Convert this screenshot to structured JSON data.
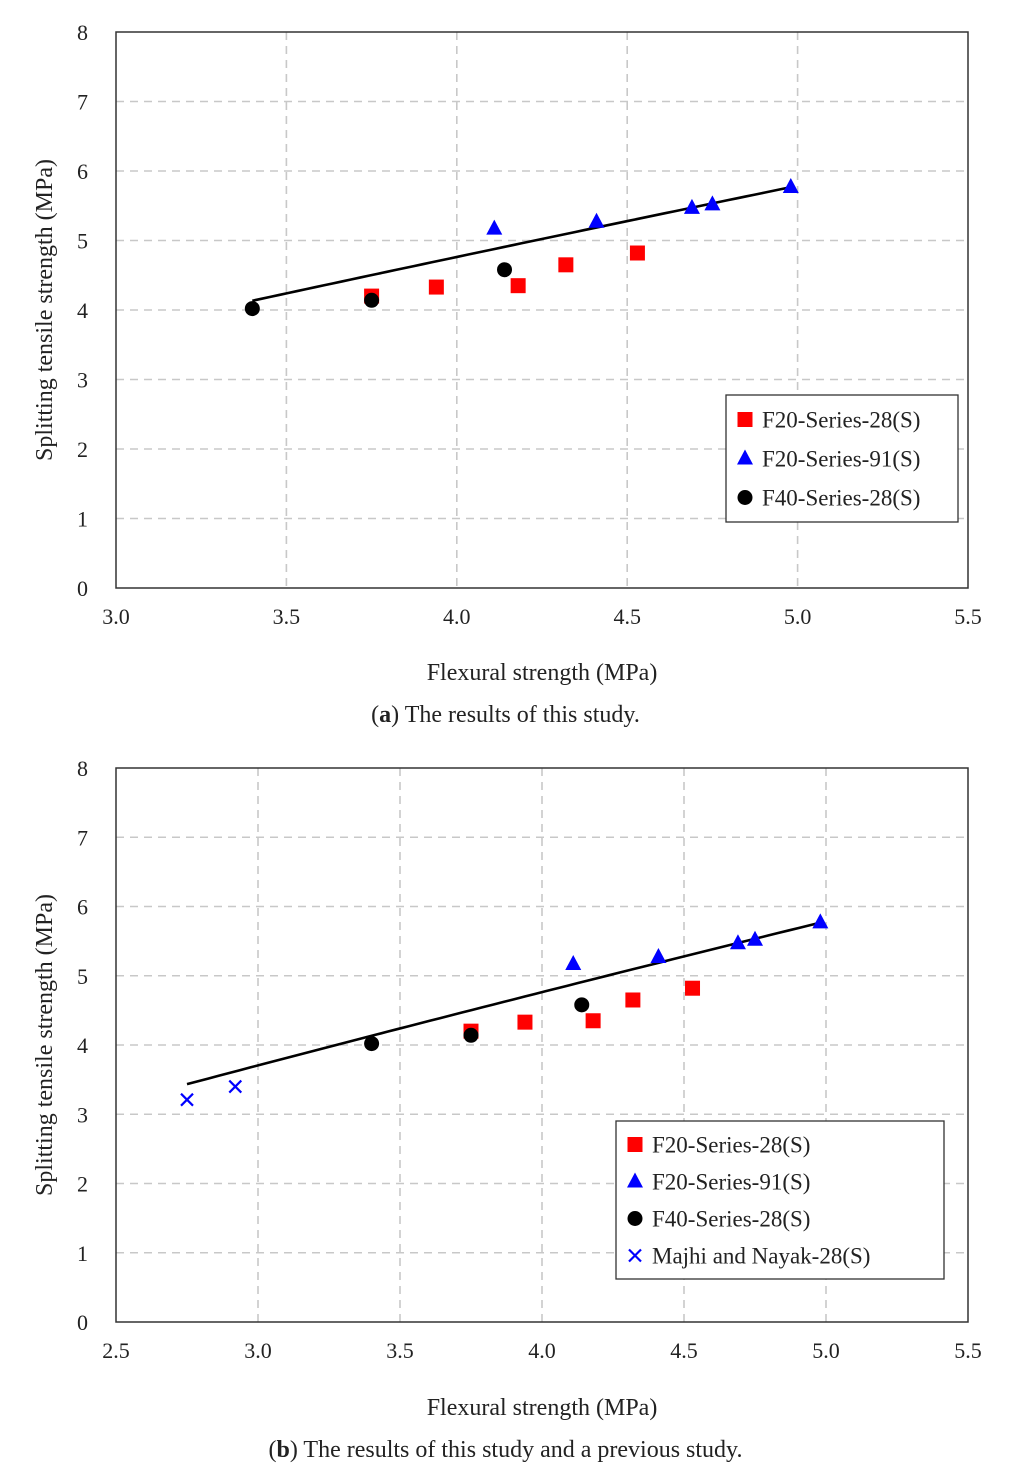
{
  "chart_data": [
    {
      "type": "scatter",
      "panel": "a",
      "caption_letter": "a",
      "caption_text": " The results of this study.",
      "xlabel": "Flexural strength (MPa)",
      "ylabel": "Splitting tensile strength (MPa)",
      "xlim": [
        3.0,
        5.5
      ],
      "ylim": [
        0,
        8
      ],
      "xticks": [
        "3.0",
        "3.5",
        "4.0",
        "4.5",
        "5.0",
        "5.5"
      ],
      "yticks": [
        "0",
        "1",
        "2",
        "3",
        "4",
        "5",
        "6",
        "7",
        "8"
      ],
      "grid": true,
      "legend_position": "right",
      "series": [
        {
          "name": "F20-Series-28(S)",
          "marker": "square",
          "color": "#ff0000",
          "x": [
            3.75,
            3.94,
            4.18,
            4.32,
            4.53
          ],
          "y": [
            4.2,
            4.33,
            4.35,
            4.65,
            4.82
          ]
        },
        {
          "name": "F20-Series-91(S)",
          "marker": "triangle",
          "color": "#0000ff",
          "x": [
            4.11,
            4.41,
            4.69,
            4.75,
            4.98
          ],
          "y": [
            5.17,
            5.27,
            5.47,
            5.52,
            5.77
          ]
        },
        {
          "name": "F40-Series-28(S)",
          "marker": "circle",
          "color": "#000000",
          "x": [
            3.4,
            3.75,
            4.14
          ],
          "y": [
            4.02,
            4.14,
            4.58
          ]
        }
      ],
      "fit": {
        "a": 1.42,
        "b": 0.873,
        "x_range": [
          3.4,
          4.98
        ]
      }
    },
    {
      "type": "scatter",
      "panel": "b",
      "caption_letter": "b",
      "caption_text": " The results of this study and a previous study.",
      "xlabel": "Flexural strength (MPa)",
      "ylabel": "Splitting tensile strength (MPa)",
      "xlim": [
        2.5,
        5.5
      ],
      "ylim": [
        0,
        8
      ],
      "xticks": [
        "2.5",
        "3.0",
        "3.5",
        "4.0",
        "4.5",
        "5.0",
        "5.5"
      ],
      "yticks": [
        "0",
        "1",
        "2",
        "3",
        "4",
        "5",
        "6",
        "7",
        "8"
      ],
      "grid": true,
      "legend_position": "bottom-right",
      "series": [
        {
          "name": "F20-Series-28(S)",
          "marker": "square",
          "color": "#ff0000",
          "x": [
            3.75,
            3.94,
            4.18,
            4.32,
            4.53
          ],
          "y": [
            4.2,
            4.33,
            4.35,
            4.65,
            4.82
          ]
        },
        {
          "name": "F20-Series-91(S)",
          "marker": "triangle",
          "color": "#0000ff",
          "x": [
            4.11,
            4.41,
            4.69,
            4.75,
            4.98
          ],
          "y": [
            5.17,
            5.27,
            5.47,
            5.52,
            5.77
          ]
        },
        {
          "name": "F40-Series-28(S)",
          "marker": "circle",
          "color": "#000000",
          "x": [
            3.4,
            3.75,
            4.14
          ],
          "y": [
            4.02,
            4.14,
            4.58
          ]
        },
        {
          "name": "Majhi and Nayak-28(S)",
          "marker": "x",
          "color": "#0000ff",
          "x": [
            2.75,
            2.92
          ],
          "y": [
            3.21,
            3.4
          ]
        }
      ],
      "fit": {
        "a": 1.42,
        "b": 0.873,
        "x_range": [
          2.75,
          4.98
        ]
      }
    }
  ]
}
